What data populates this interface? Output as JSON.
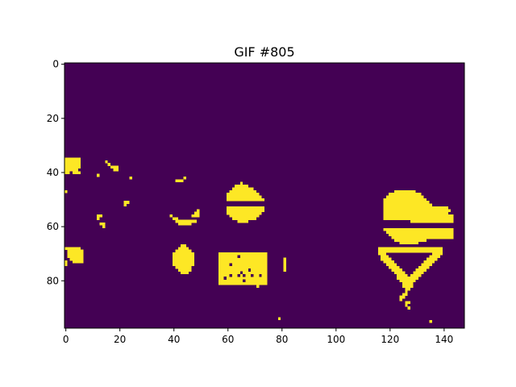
{
  "chart_data": {
    "type": "heatmap",
    "title": "GIF #805",
    "xlabel": "",
    "ylabel": "",
    "xlim": [
      0,
      148
    ],
    "ylim": [
      98,
      0
    ],
    "x_ticks": [
      "0",
      "20",
      "40",
      "60",
      "80",
      "100",
      "120",
      "140"
    ],
    "y_ticks": [
      "0",
      "20",
      "40",
      "60",
      "80"
    ],
    "grid": false,
    "legend": "none",
    "colors": {
      "background": "#440154",
      "foreground": "#fde725"
    },
    "foreground_cells": [
      [
        35,
        0,
        5
      ],
      [
        36,
        0,
        5
      ],
      [
        37,
        0,
        5
      ],
      [
        38,
        0,
        5
      ],
      [
        39,
        0,
        4
      ],
      [
        40,
        0,
        1
      ],
      [
        40,
        3,
        5
      ],
      [
        36,
        15,
        15
      ],
      [
        37,
        16,
        16
      ],
      [
        38,
        17,
        19
      ],
      [
        39,
        18,
        19
      ],
      [
        41,
        12,
        12
      ],
      [
        42,
        24,
        24
      ],
      [
        47,
        0,
        0
      ],
      [
        42,
        44,
        44
      ],
      [
        43,
        41,
        43
      ],
      [
        51,
        22,
        23
      ],
      [
        52,
        22,
        22
      ],
      [
        56,
        12,
        13
      ],
      [
        57,
        12,
        12
      ],
      [
        59,
        13,
        14
      ],
      [
        60,
        14,
        14
      ],
      [
        56,
        39,
        39
      ],
      [
        57,
        40,
        41
      ],
      [
        58,
        41,
        48
      ],
      [
        59,
        42,
        46
      ],
      [
        55,
        48,
        49
      ],
      [
        56,
        47,
        49
      ],
      [
        54,
        49,
        49
      ],
      [
        44,
        65,
        65
      ],
      [
        45,
        63,
        67
      ],
      [
        46,
        62,
        69
      ],
      [
        47,
        61,
        70
      ],
      [
        48,
        60,
        71
      ],
      [
        49,
        60,
        72
      ],
      [
        50,
        60,
        73
      ],
      [
        53,
        60,
        73
      ],
      [
        54,
        60,
        73
      ],
      [
        55,
        60,
        72
      ],
      [
        56,
        61,
        71
      ],
      [
        57,
        62,
        70
      ],
      [
        58,
        64,
        67
      ],
      [
        47,
        122,
        129
      ],
      [
        48,
        120,
        131
      ],
      [
        49,
        119,
        132
      ],
      [
        50,
        118,
        133
      ],
      [
        51,
        118,
        134
      ],
      [
        52,
        118,
        135
      ],
      [
        53,
        118,
        141
      ],
      [
        54,
        118,
        142
      ],
      [
        55,
        118,
        141
      ],
      [
        56,
        118,
        143
      ],
      [
        57,
        118,
        143
      ],
      [
        58,
        128,
        143
      ],
      [
        61,
        118,
        143
      ],
      [
        62,
        119,
        143
      ],
      [
        63,
        120,
        143
      ],
      [
        64,
        121,
        143
      ],
      [
        65,
        122,
        133
      ],
      [
        66,
        124,
        130
      ],
      [
        68,
        116,
        139
      ],
      [
        69,
        116,
        139
      ],
      [
        70,
        116,
        118
      ],
      [
        70,
        136,
        139
      ],
      [
        71,
        117,
        119
      ],
      [
        71,
        135,
        138
      ],
      [
        72,
        117,
        120
      ],
      [
        72,
        134,
        137
      ],
      [
        73,
        118,
        121
      ],
      [
        73,
        133,
        136
      ],
      [
        74,
        119,
        122
      ],
      [
        74,
        132,
        135
      ],
      [
        75,
        120,
        123
      ],
      [
        75,
        131,
        134
      ],
      [
        76,
        121,
        124
      ],
      [
        76,
        130,
        133
      ],
      [
        77,
        122,
        125
      ],
      [
        77,
        129,
        132
      ],
      [
        78,
        123,
        126
      ],
      [
        78,
        128,
        131
      ],
      [
        79,
        123,
        127
      ],
      [
        79,
        127,
        130
      ],
      [
        80,
        124,
        129
      ],
      [
        81,
        125,
        128
      ],
      [
        82,
        125,
        128
      ],
      [
        83,
        126,
        127
      ],
      [
        84,
        126,
        126
      ],
      [
        85,
        125,
        126
      ],
      [
        86,
        124,
        125
      ],
      [
        87,
        124,
        124
      ],
      [
        88,
        126,
        127
      ],
      [
        89,
        126,
        126
      ],
      [
        90,
        127,
        127
      ],
      [
        68,
        0,
        5
      ],
      [
        69,
        1,
        6
      ],
      [
        70,
        1,
        6
      ],
      [
        71,
        1,
        6
      ],
      [
        72,
        2,
        6
      ],
      [
        73,
        0,
        0
      ],
      [
        73,
        3,
        6
      ],
      [
        74,
        0,
        0
      ],
      [
        67,
        43,
        44
      ],
      [
        68,
        42,
        45
      ],
      [
        69,
        41,
        46
      ],
      [
        70,
        40,
        47
      ],
      [
        71,
        40,
        47
      ],
      [
        72,
        40,
        47
      ],
      [
        73,
        40,
        47
      ],
      [
        74,
        40,
        47
      ],
      [
        75,
        41,
        46
      ],
      [
        76,
        42,
        46
      ],
      [
        77,
        43,
        45
      ],
      [
        70,
        57,
        74
      ],
      [
        71,
        57,
        74
      ],
      [
        72,
        57,
        74
      ],
      [
        73,
        57,
        74
      ],
      [
        74,
        57,
        74
      ],
      [
        75,
        57,
        74
      ],
      [
        76,
        57,
        74
      ],
      [
        77,
        57,
        74
      ],
      [
        78,
        57,
        74
      ],
      [
        79,
        57,
        74
      ],
      [
        80,
        57,
        74
      ],
      [
        81,
        57,
        74
      ],
      [
        72,
        81,
        81
      ],
      [
        73,
        81,
        81
      ],
      [
        74,
        81,
        81
      ],
      [
        75,
        81,
        81
      ],
      [
        76,
        81,
        81
      ],
      [
        82,
        71,
        71
      ],
      [
        94,
        79,
        79
      ],
      [
        95,
        135,
        135
      ]
    ],
    "hole_cells": [
      [
        71,
        64,
        64
      ],
      [
        74,
        61,
        61
      ],
      [
        76,
        68,
        68
      ],
      [
        77,
        65,
        65
      ],
      [
        78,
        61,
        61
      ],
      [
        78,
        64,
        64
      ],
      [
        78,
        66,
        66
      ],
      [
        78,
        69,
        69
      ],
      [
        78,
        72,
        72
      ],
      [
        79,
        59,
        59
      ],
      [
        80,
        66,
        66
      ]
    ]
  }
}
